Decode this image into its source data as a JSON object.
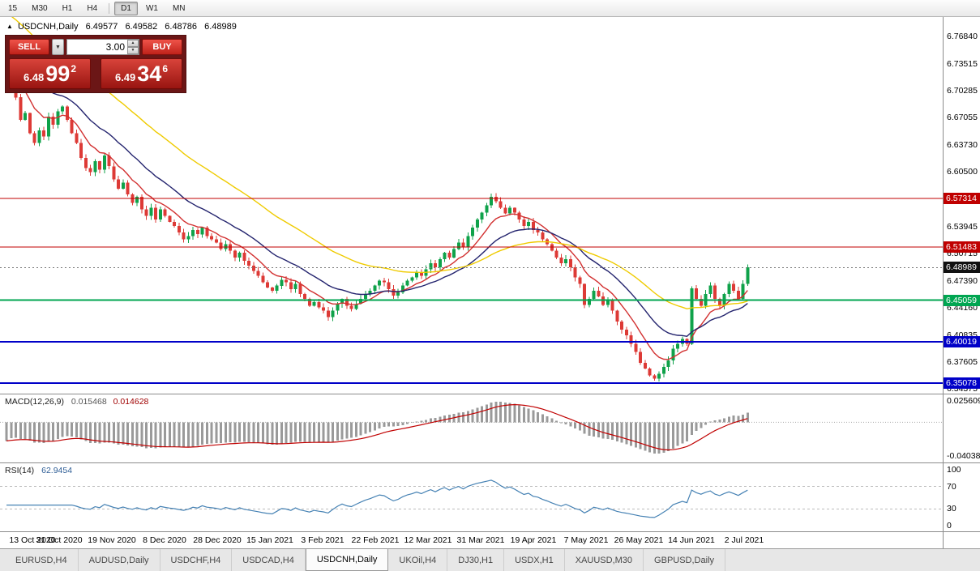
{
  "toolbar": {
    "timeframes": [
      {
        "label": "15",
        "active": false,
        "separator_before": false
      },
      {
        "label": "M30",
        "active": false,
        "separator_before": false
      },
      {
        "label": "H1",
        "active": false,
        "separator_before": false
      },
      {
        "label": "H4",
        "active": false,
        "separator_before": false
      },
      {
        "label": "D1",
        "active": true,
        "separator_before": true
      },
      {
        "label": "W1",
        "active": false,
        "separator_before": false
      },
      {
        "label": "MN",
        "active": false,
        "separator_before": false
      }
    ]
  },
  "chart": {
    "title": {
      "symbol": "USDCNH,Daily",
      "open": "6.49577",
      "high": "6.49582",
      "low": "6.48786",
      "close": "6.48989"
    }
  },
  "trade_panel": {
    "sell_label": "SELL",
    "buy_label": "BUY",
    "volume": "3.00",
    "sell_price_small": "6.48",
    "sell_price_big": "99",
    "sell_price_sup": "2",
    "buy_price_small": "6.49",
    "buy_price_big": "34",
    "buy_price_sup": "6"
  },
  "icons": {
    "chart_marker": "▲",
    "dropdown": "▼",
    "spin_up": "▲",
    "spin_down": "▼"
  },
  "price_axis": {
    "ticks": [
      "6.76840",
      "6.73515",
      "6.70285",
      "6.67055",
      "6.63730",
      "6.60500",
      "6.53945",
      "6.50715",
      "6.47390",
      "6.44160",
      "6.40835",
      "6.37605",
      "6.34375"
    ],
    "badges": [
      {
        "label": "6.57314",
        "color": "#c00000"
      },
      {
        "label": "6.51483",
        "color": "#c00000"
      },
      {
        "label": "6.48989",
        "color": "#111111"
      },
      {
        "label": "6.45059",
        "color": "#00a651"
      },
      {
        "label": "6.40019",
        "color": "#0000c8"
      },
      {
        "label": "6.35078",
        "color": "#0000c8"
      }
    ]
  },
  "indicators": {
    "macd": {
      "label": "MACD(12,26,9)",
      "value1": "0.015468",
      "value2": "0.014628",
      "axis": [
        "0.025609",
        "-0.040380"
      ]
    },
    "rsi": {
      "label": "RSI(14)",
      "value": "62.9454",
      "axis": [
        "100",
        "70",
        "30",
        "0"
      ]
    }
  },
  "time_axis": [
    "13 Oct 2020",
    "31 Oct 2020",
    "19 Nov 2020",
    "8 Dec 2020",
    "28 Dec 2020",
    "15 Jan 2021",
    "3 Feb 2021",
    "22 Feb 2021",
    "12 Mar 2021",
    "31 Mar 2021",
    "19 Apr 2021",
    "7 May 2021",
    "26 May 2021",
    "14 Jun 2021",
    "2 Jul 2021"
  ],
  "tabs": [
    {
      "label": "EURUSD,H4",
      "active": false
    },
    {
      "label": "AUDUSD,Daily",
      "active": false
    },
    {
      "label": "USDCHF,H4",
      "active": false
    },
    {
      "label": "USDCAD,H4",
      "active": false
    },
    {
      "label": "USDCNH,Daily",
      "active": true
    },
    {
      "label": "UKOil,H4",
      "active": false
    },
    {
      "label": "DJ30,H1",
      "active": false
    },
    {
      "label": "USDX,H1",
      "active": false
    },
    {
      "label": "XAUUSD,M30",
      "active": false
    },
    {
      "label": "GBPUSD,Daily",
      "active": false
    }
  ],
  "chart_data": {
    "type": "candlestick",
    "symbol": "USDCNH",
    "timeframe": "Daily",
    "ylim": [
      6.3379,
      6.7919
    ],
    "first_open": 6.72,
    "current_price": 6.48989,
    "closes": [
      6.71,
      6.722,
      6.695,
      6.668,
      6.676,
      6.652,
      6.64,
      6.655,
      6.648,
      6.672,
      6.662,
      6.678,
      6.684,
      6.668,
      6.652,
      6.64,
      6.622,
      6.61,
      6.605,
      6.618,
      6.608,
      6.625,
      6.612,
      6.596,
      6.585,
      6.592,
      6.578,
      6.568,
      6.575,
      6.56,
      6.552,
      6.562,
      6.548,
      6.56,
      6.552,
      6.545,
      6.54,
      6.532,
      6.524,
      6.528,
      6.535,
      6.53,
      6.538,
      6.528,
      6.524,
      6.52,
      6.512,
      6.518,
      6.51,
      6.502,
      6.508,
      6.498,
      6.492,
      6.486,
      6.48,
      6.472,
      6.466,
      6.462,
      6.468,
      6.475,
      6.472,
      6.464,
      6.47,
      6.458,
      6.452,
      6.444,
      6.448,
      6.442,
      6.438,
      6.43,
      6.438,
      6.446,
      6.452,
      6.444,
      6.44,
      6.446,
      6.452,
      6.458,
      6.462,
      6.468,
      6.474,
      6.472,
      6.464,
      6.456,
      6.46,
      6.468,
      6.474,
      6.478,
      6.484,
      6.48,
      6.488,
      6.495,
      6.49,
      6.5,
      6.508,
      6.502,
      6.512,
      6.52,
      6.514,
      6.528,
      6.538,
      6.548,
      6.556,
      6.565,
      6.575,
      6.57,
      6.562,
      6.555,
      6.562,
      6.556,
      6.548,
      6.54,
      6.545,
      6.535,
      6.532,
      6.524,
      6.518,
      6.51,
      6.502,
      6.495,
      6.5,
      6.49,
      6.478,
      6.47,
      6.445,
      6.452,
      6.462,
      6.455,
      6.445,
      6.45,
      6.438,
      6.425,
      6.415,
      6.408,
      6.398,
      6.388,
      6.375,
      6.368,
      6.36,
      6.356,
      6.362,
      6.37,
      6.378,
      6.392,
      6.398,
      6.404,
      6.398,
      6.465,
      6.452,
      6.444,
      6.458,
      6.468,
      6.452,
      6.444,
      6.458,
      6.47,
      6.462,
      6.452,
      6.47,
      6.49
    ],
    "colors": {
      "up": "#0fa24a",
      "down": "#dd3a36",
      "macd_hist": "#9a9a9a",
      "macd_signal": "#c00000",
      "rsi_line": "#4682b4",
      "bid_line": "#777777"
    },
    "ma": [
      {
        "period": 9,
        "color": "#d23030",
        "seed": 6.73
      },
      {
        "period": 21,
        "color": "#24246e",
        "seed": 6.76
      },
      {
        "period": 45,
        "color": "#efcb00",
        "seed": 6.8
      }
    ],
    "hlines": [
      {
        "price": 6.57314,
        "color": "#c00000",
        "width": 1
      },
      {
        "price": 6.51483,
        "color": "#c00000",
        "width": 1
      },
      {
        "price": 6.45059,
        "color": "#00a651",
        "width": 2
      },
      {
        "price": 6.40019,
        "color": "#0000c8",
        "width": 2
      },
      {
        "price": 6.35078,
        "color": "#0000c8",
        "width": 2
      }
    ],
    "macd": {
      "fast": 12,
      "slow": 26,
      "signal": 9,
      "seed_fast": 6.7,
      "seed_slow": 6.725,
      "range": [
        -0.04038,
        0.025609
      ]
    },
    "rsi": {
      "period": 14,
      "range": [
        0,
        100
      ],
      "levels": [
        70,
        30
      ]
    }
  }
}
